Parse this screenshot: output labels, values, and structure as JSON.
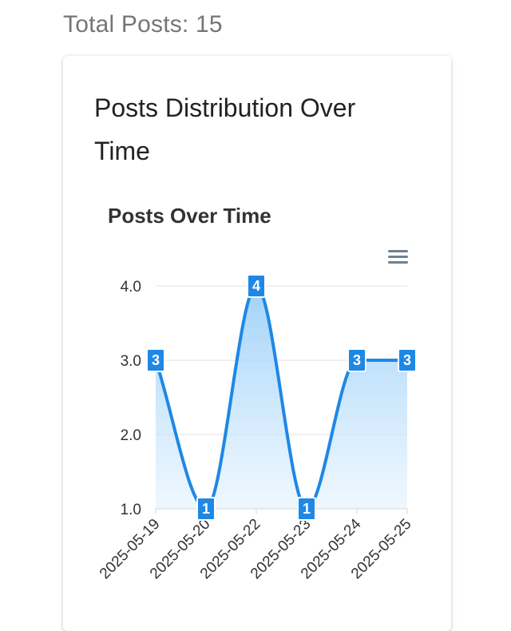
{
  "header": {
    "total_posts": "Total Posts: 15"
  },
  "card": {
    "title": "Posts Distribution Over Time"
  },
  "menu_icon": "hamburger-menu-icon",
  "colors": {
    "series": "#1E88E5",
    "area_top": "#90CAF9",
    "area_bottom": "#E3F2FD",
    "grid": "#E0E0E0"
  },
  "chart_data": {
    "type": "area",
    "title": "Posts Over Time",
    "categories": [
      "2025-05-19",
      "2025-05-20",
      "2025-05-22",
      "2025-05-23",
      "2025-05-24",
      "2025-05-25"
    ],
    "series": [
      {
        "values": [
          3,
          1,
          4,
          1,
          3,
          3
        ]
      }
    ],
    "y_ticks": [
      "1.0",
      "2.0",
      "3.0",
      "4.0"
    ],
    "ylim": [
      1,
      4
    ],
    "curve": "smooth",
    "grid": true,
    "data_labels": true,
    "legend": "none"
  }
}
